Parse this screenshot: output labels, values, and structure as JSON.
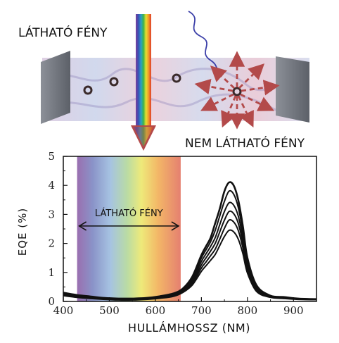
{
  "illustration": {
    "visible_light_label": "LÁTHATÓ FÉNY",
    "invisible_light_label": "NEM LÁTHATÓ FÉNY"
  },
  "chart_data": {
    "type": "line",
    "xlabel": "HULLÁMHOSSZ (NM)",
    "ylabel": "EQE (%)",
    "xlim": [
      400,
      950
    ],
    "ylim": [
      0,
      5
    ],
    "x_ticks": [
      400,
      500,
      600,
      700,
      800,
      900
    ],
    "y_ticks": [
      0,
      1,
      2,
      3,
      4,
      5
    ],
    "band": {
      "start": 430,
      "end": 655,
      "label": "LÁTHATÓ FÉNY"
    },
    "x": [
      400,
      430,
      460,
      490,
      520,
      550,
      580,
      610,
      640,
      660,
      680,
      700,
      710,
      720,
      730,
      740,
      750,
      760,
      770,
      780,
      790,
      800,
      820,
      850,
      880,
      910,
      950
    ],
    "series": [
      {
        "values": [
          0.3,
          0.22,
          0.17,
          0.12,
          0.1,
          0.1,
          0.12,
          0.18,
          0.28,
          0.45,
          0.85,
          1.6,
          1.9,
          2.2,
          2.7,
          3.2,
          3.8,
          4.1,
          4.0,
          3.5,
          2.6,
          1.5,
          0.55,
          0.2,
          0.15,
          0.1,
          0.08
        ]
      },
      {
        "values": [
          0.28,
          0.2,
          0.15,
          0.11,
          0.09,
          0.09,
          0.11,
          0.16,
          0.26,
          0.42,
          0.8,
          1.5,
          1.78,
          2.06,
          2.45,
          2.95,
          3.45,
          3.8,
          3.7,
          3.25,
          2.4,
          1.4,
          0.5,
          0.18,
          0.14,
          0.1,
          0.08
        ]
      },
      {
        "values": [
          0.26,
          0.19,
          0.14,
          0.1,
          0.08,
          0.08,
          0.1,
          0.15,
          0.24,
          0.4,
          0.74,
          1.38,
          1.64,
          1.9,
          2.2,
          2.65,
          3.1,
          3.4,
          3.32,
          2.95,
          2.2,
          1.28,
          0.46,
          0.17,
          0.13,
          0.09,
          0.07
        ]
      },
      {
        "values": [
          0.24,
          0.17,
          0.13,
          0.09,
          0.07,
          0.07,
          0.09,
          0.14,
          0.22,
          0.37,
          0.68,
          1.26,
          1.5,
          1.74,
          2.0,
          2.4,
          2.8,
          3.1,
          3.03,
          2.7,
          2.02,
          1.18,
          0.42,
          0.16,
          0.12,
          0.09,
          0.07
        ]
      },
      {
        "values": [
          0.22,
          0.16,
          0.12,
          0.08,
          0.06,
          0.06,
          0.08,
          0.12,
          0.2,
          0.34,
          0.62,
          1.15,
          1.36,
          1.58,
          1.8,
          2.15,
          2.52,
          2.8,
          2.74,
          2.45,
          1.85,
          1.08,
          0.38,
          0.15,
          0.11,
          0.08,
          0.06
        ]
      },
      {
        "values": [
          0.2,
          0.14,
          0.1,
          0.07,
          0.05,
          0.05,
          0.07,
          0.11,
          0.18,
          0.31,
          0.56,
          1.04,
          1.23,
          1.42,
          1.62,
          1.93,
          2.24,
          2.45,
          2.4,
          2.15,
          1.65,
          0.98,
          0.34,
          0.14,
          0.1,
          0.07,
          0.06
        ]
      }
    ]
  },
  "colors": {
    "axis": "#111111",
    "curve": "#111111",
    "arrow_down": "#b34a4a",
    "wall": "#6a6f78"
  }
}
